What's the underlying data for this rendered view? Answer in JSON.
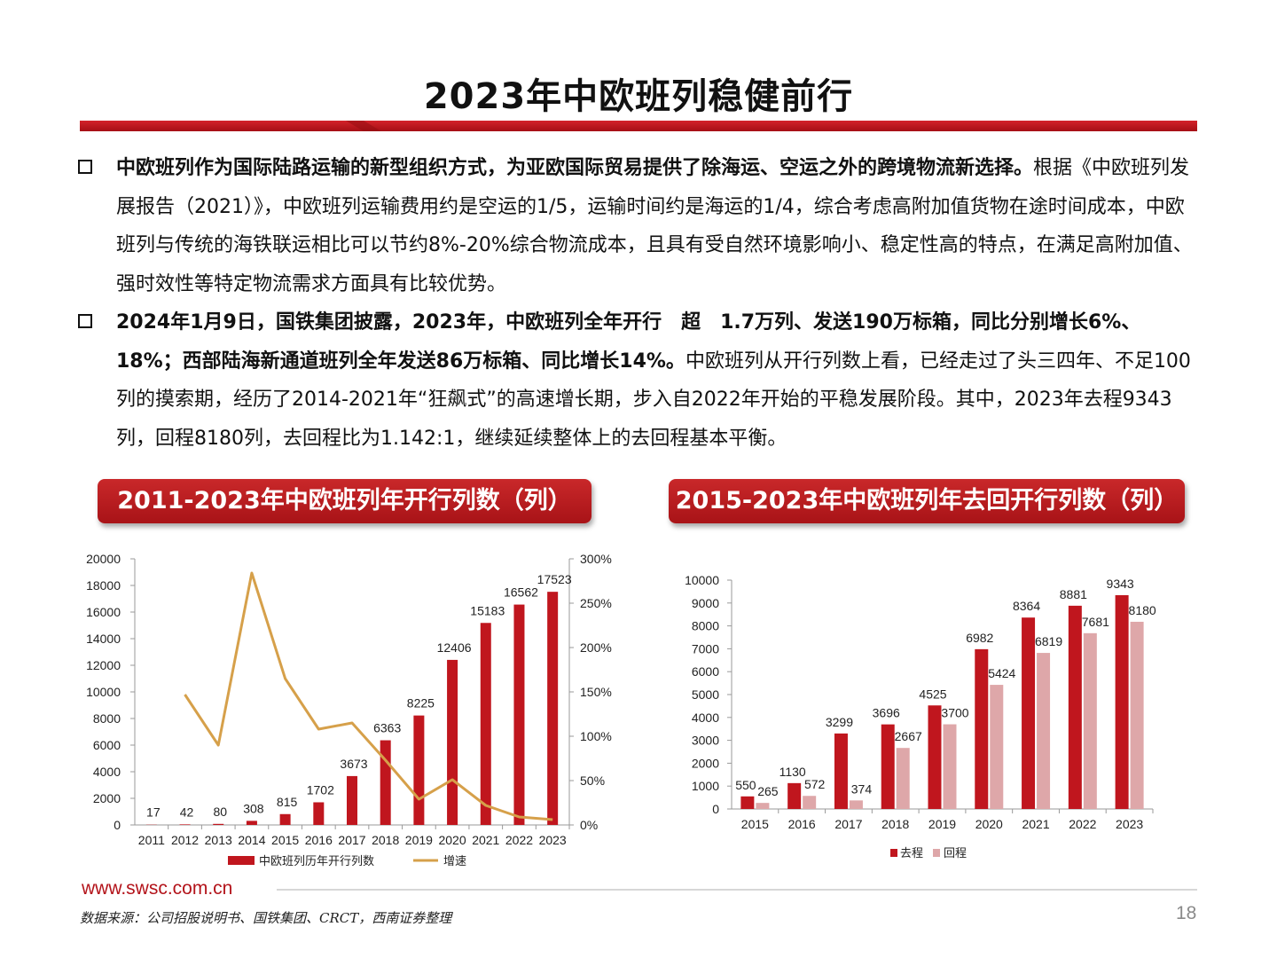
{
  "slide": {
    "title": "2023年中欧班列稳健前行",
    "bullets": [
      {
        "bold": "中欧班列作为国际陆路运输的新型组织方式，为亚欧国际贸易提供了除海运、空运之外的跨境物流新选择。",
        "normal": "根据《中欧班列发展报告（2021）》，中欧班列运输费用约是空运的1/5，运输时间约是海运的1/4，综合考虑高附加值货物在途时间成本，中欧班列与传统的海铁联运相比可以节约8%-20%综合物流成本，且具有受自然环境影响小、稳定性高的特点，在满足高附加值、强时效性等特定物流需求方面具有比较优势。"
      },
      {
        "bold": "2024年1月9日，国铁集团披露，2023年，中欧班列全年开行　超　1.7万列、发送190万标箱，同比分别增长6%、18%；西部陆海新通道班列全年发送86万标箱、同比增长14%。",
        "normal": "中欧班列从开行列数上看，已经走过了头三四年、不足100列的摸索期，经历了2014-2021年“狂飙式”的高速增长期，步入自2022年开始的平稳发展阶段。其中，2023年去程9343列，回程8180列，去回程比为1.142:1，继续延续整体上的去回程基本平衡。"
      }
    ],
    "left_chart_title": "2011-2023年中欧班列年开行列数（列）",
    "right_chart_title": "2015-2023年中欧班列年去回开行列数（列）",
    "website": "www.swsc.com.cn",
    "source": "数据来源：公司招股说明书、国铁集团、CRCT，西南证券整理",
    "page_number": "18"
  },
  "colors": {
    "accent_red": "#c0161e",
    "light_red": "#dea7a9",
    "growth_line": "#d6a04a",
    "axis": "#999999"
  },
  "chart_data": [
    {
      "type": "bar",
      "categories": [
        "2011",
        "2012",
        "2013",
        "2014",
        "2015",
        "2016",
        "2017",
        "2018",
        "2019",
        "2020",
        "2021",
        "2022",
        "2023"
      ],
      "series": [
        {
          "name": "中欧班列历年开行列数",
          "type": "bar",
          "axis": "left",
          "values": [
            17,
            42,
            80,
            308,
            815,
            1702,
            3673,
            6363,
            8225,
            12406,
            15183,
            16562,
            17523
          ]
        },
        {
          "name": "增速",
          "type": "line",
          "axis": "right",
          "values": [
            null,
            147,
            90,
            284,
            165,
            108,
            115,
            73,
            29,
            51,
            22,
            9,
            6
          ]
        }
      ],
      "y_left": {
        "min": 0,
        "max": 20000,
        "ticks": [
          0,
          2000,
          4000,
          6000,
          8000,
          10000,
          12000,
          14000,
          16000,
          18000,
          20000
        ],
        "tick_labels": [
          "0",
          "2000",
          "4000",
          "6000",
          "8000",
          "10000",
          "12000",
          "14000",
          "16000",
          "18000",
          "20000"
        ]
      },
      "y_right": {
        "min": 0,
        "max": 300,
        "ticks": [
          0,
          50,
          100,
          150,
          200,
          250,
          300
        ],
        "tick_labels": [
          "0%",
          "50%",
          "100%",
          "150%",
          "200%",
          "250%",
          "300%"
        ]
      },
      "legend": "bottom",
      "grid": false
    },
    {
      "type": "bar",
      "categories": [
        "2015",
        "2016",
        "2017",
        "2018",
        "2019",
        "2020",
        "2021",
        "2022",
        "2023"
      ],
      "series": [
        {
          "name": "去程",
          "values": [
            550,
            1130,
            3299,
            3696,
            4525,
            6982,
            8364,
            8881,
            9343
          ]
        },
        {
          "name": "回程",
          "values": [
            265,
            572,
            374,
            2667,
            3700,
            5424,
            6819,
            7681,
            8180
          ]
        }
      ],
      "y": {
        "min": 0,
        "max": 10000,
        "ticks": [
          0,
          1000,
          2000,
          3000,
          4000,
          5000,
          6000,
          7000,
          8000,
          9000,
          10000
        ],
        "tick_labels": [
          "0",
          "1000",
          "2000",
          "3000",
          "4000",
          "5000",
          "6000",
          "7000",
          "8000",
          "9000",
          "10000"
        ]
      },
      "legend": "bottom",
      "grid": false
    }
  ]
}
